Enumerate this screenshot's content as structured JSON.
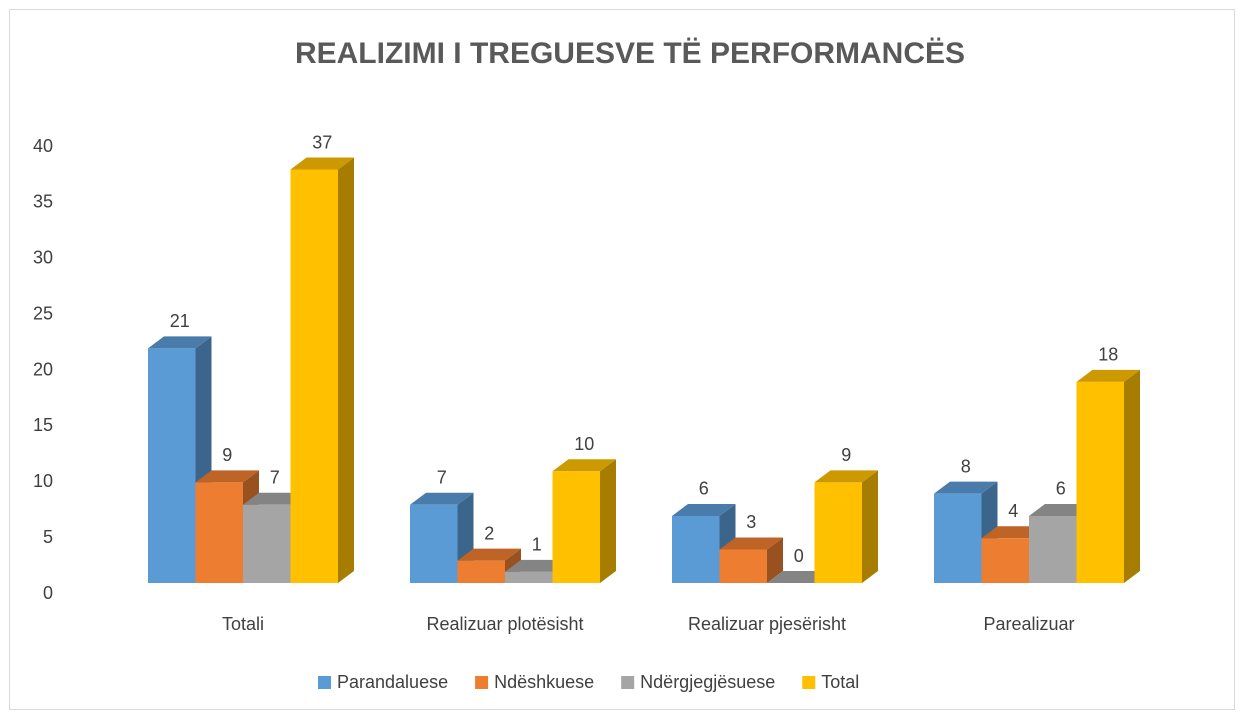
{
  "chart_data": {
    "type": "bar3d",
    "title": "REALIZIMI I TREGUESVE TË PERFORMANCËS",
    "categories": [
      "Totali",
      "Realizuar plotësisht",
      "Realizuar pjesërisht",
      "Parealizuar"
    ],
    "series": [
      {
        "name": "Parandaluese",
        "color": "#5b9bd5",
        "values": [
          21,
          7,
          6,
          8
        ]
      },
      {
        "name": "Ndëshkuese",
        "color": "#ed7d31",
        "values": [
          9,
          2,
          3,
          4
        ]
      },
      {
        "name": "Ndërgjegjësuese",
        "color": "#a5a5a5",
        "values": [
          7,
          1,
          0,
          6
        ]
      },
      {
        "name": "Total",
        "color": "#ffc000",
        "values": [
          37,
          10,
          9,
          18
        ]
      }
    ],
    "ylim": [
      0,
      40
    ],
    "yticks": [
      0,
      5,
      10,
      15,
      20,
      25,
      30,
      35,
      40
    ],
    "legend": "bottom"
  }
}
